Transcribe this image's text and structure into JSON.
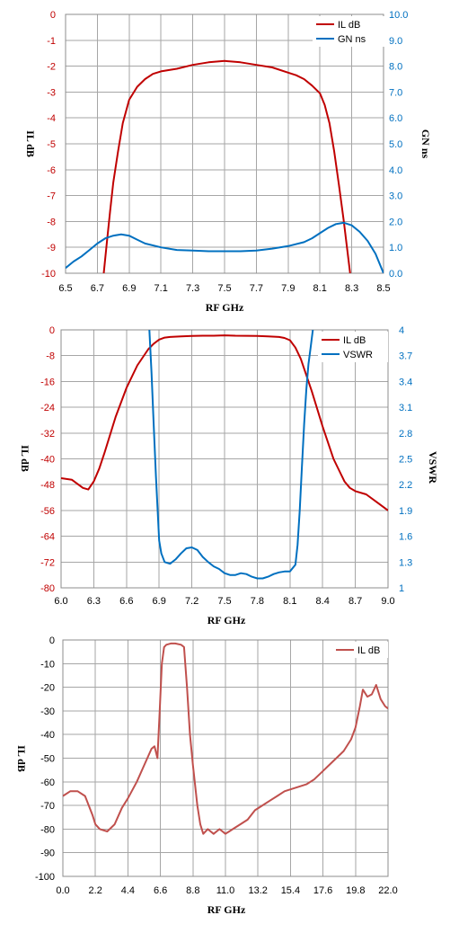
{
  "chart_data": [
    {
      "id": "c1",
      "type": "line",
      "xlabel": "RF GHz",
      "ylabel": "IL dB",
      "y2label": "GN ns",
      "xlim": [
        6.5,
        8.5
      ],
      "ylim": [
        -10,
        0
      ],
      "y2lim": [
        0,
        10
      ],
      "xticks": [
        "6.5",
        "6.7",
        "6.9",
        "7.1",
        "7.3",
        "7.5",
        "7.7",
        "7.9",
        "8.1",
        "8.3",
        "8.5"
      ],
      "yticks": [
        "0",
        "-1",
        "-2",
        "-3",
        "-4",
        "-5",
        "-6",
        "-7",
        "-8",
        "-9",
        "-10"
      ],
      "y2ticks": [
        "10.0",
        "9.0",
        "8.0",
        "7.0",
        "6.0",
        "5.0",
        "4.0",
        "3.0",
        "2.0",
        "1.0",
        "0.0"
      ],
      "legend": {
        "position": "top-right"
      },
      "colors": {
        "left_axis": "#c00000",
        "right_axis": "#0070c0"
      },
      "series": [
        {
          "name": "IL dB",
          "axis": "left",
          "color": "#c00000",
          "x": [
            6.74,
            6.76,
            6.78,
            6.8,
            6.83,
            6.86,
            6.9,
            6.95,
            7.0,
            7.05,
            7.1,
            7.2,
            7.3,
            7.4,
            7.5,
            7.6,
            7.7,
            7.8,
            7.9,
            7.95,
            8.0,
            8.05,
            8.1,
            8.13,
            8.16,
            8.19,
            8.22,
            8.25,
            8.27,
            8.29
          ],
          "y": [
            -10,
            -8.8,
            -7.6,
            -6.5,
            -5.3,
            -4.2,
            -3.3,
            -2.8,
            -2.5,
            -2.3,
            -2.2,
            -2.1,
            -1.95,
            -1.85,
            -1.8,
            -1.85,
            -1.95,
            -2.05,
            -2.25,
            -2.35,
            -2.5,
            -2.75,
            -3.05,
            -3.5,
            -4.2,
            -5.3,
            -6.6,
            -8.0,
            -9.0,
            -10
          ]
        },
        {
          "name": "GN ns",
          "axis": "right",
          "color": "#0070c0",
          "x": [
            6.5,
            6.55,
            6.6,
            6.65,
            6.7,
            6.75,
            6.8,
            6.85,
            6.9,
            6.95,
            7.0,
            7.1,
            7.2,
            7.3,
            7.4,
            7.5,
            7.6,
            7.7,
            7.8,
            7.9,
            8.0,
            8.05,
            8.1,
            8.15,
            8.2,
            8.25,
            8.3,
            8.35,
            8.4,
            8.45,
            8.5
          ],
          "y": [
            0.2,
            0.45,
            0.65,
            0.9,
            1.15,
            1.35,
            1.45,
            1.5,
            1.45,
            1.3,
            1.15,
            1.0,
            0.9,
            0.88,
            0.85,
            0.85,
            0.85,
            0.88,
            0.95,
            1.05,
            1.2,
            1.35,
            1.55,
            1.75,
            1.9,
            1.95,
            1.85,
            1.6,
            1.25,
            0.75,
            0.0
          ]
        }
      ]
    },
    {
      "id": "c2",
      "type": "line",
      "xlabel": "RF GHz",
      "ylabel": "IL dB",
      "y2label": "VSWR",
      "xlim": [
        6.0,
        9.0
      ],
      "ylim": [
        -80,
        0
      ],
      "y2lim": [
        1,
        4
      ],
      "xticks": [
        "6.0",
        "6.3",
        "6.6",
        "6.9",
        "7.2",
        "7.5",
        "7.8",
        "8.1",
        "8.4",
        "8.7",
        "9.0"
      ],
      "yticks": [
        "0",
        "-8",
        "-16",
        "-24",
        "-32",
        "-40",
        "-48",
        "-56",
        "-64",
        "-72",
        "-80"
      ],
      "y2ticks": [
        "4",
        "3.7",
        "3.4",
        "3.1",
        "2.8",
        "2.5",
        "2.2",
        "1.9",
        "1.6",
        "1.3",
        "1"
      ],
      "legend": {
        "position": "top-right"
      },
      "colors": {
        "left_axis": "#c00000",
        "right_axis": "#0070c0"
      },
      "series": [
        {
          "name": "IL dB",
          "axis": "left",
          "color": "#c00000",
          "x": [
            6.0,
            6.1,
            6.2,
            6.25,
            6.3,
            6.35,
            6.4,
            6.5,
            6.6,
            6.7,
            6.8,
            6.85,
            6.9,
            6.95,
            7.0,
            7.1,
            7.2,
            7.3,
            7.4,
            7.5,
            7.6,
            7.7,
            7.8,
            7.9,
            8.0,
            8.05,
            8.1,
            8.15,
            8.2,
            8.3,
            8.4,
            8.5,
            8.6,
            8.65,
            8.7,
            8.8,
            8.9,
            9.0
          ],
          "y": [
            -46,
            -46.5,
            -49,
            -49.5,
            -47,
            -43,
            -38,
            -27,
            -18,
            -11,
            -6,
            -4.3,
            -3,
            -2.4,
            -2.2,
            -2.0,
            -1.9,
            -1.8,
            -1.8,
            -1.7,
            -1.8,
            -1.85,
            -1.9,
            -2.0,
            -2.2,
            -2.5,
            -3.2,
            -5.5,
            -9,
            -19,
            -30,
            -40,
            -47,
            -49,
            -50,
            -51,
            -53.5,
            -56
          ]
        },
        {
          "name": "VSWR",
          "axis": "right",
          "color": "#0070c0",
          "x": [
            6.81,
            6.83,
            6.85,
            6.87,
            6.89,
            6.9,
            6.92,
            6.95,
            7.0,
            7.05,
            7.1,
            7.15,
            7.2,
            7.25,
            7.3,
            7.35,
            7.4,
            7.45,
            7.5,
            7.55,
            7.6,
            7.65,
            7.7,
            7.75,
            7.8,
            7.85,
            7.9,
            7.95,
            8.0,
            8.05,
            8.1,
            8.15,
            8.17,
            8.19,
            8.21,
            8.23,
            8.25,
            8.27,
            8.29,
            8.31
          ],
          "y": [
            4.0,
            3.5,
            2.9,
            2.3,
            1.8,
            1.55,
            1.4,
            1.3,
            1.28,
            1.33,
            1.4,
            1.46,
            1.47,
            1.44,
            1.36,
            1.3,
            1.25,
            1.22,
            1.17,
            1.15,
            1.15,
            1.17,
            1.16,
            1.13,
            1.11,
            1.11,
            1.13,
            1.16,
            1.18,
            1.19,
            1.19,
            1.27,
            1.5,
            1.9,
            2.4,
            2.9,
            3.3,
            3.6,
            3.8,
            4.0
          ]
        }
      ]
    },
    {
      "id": "c3",
      "type": "line",
      "xlabel": "RF GHz",
      "ylabel": "IL dB",
      "xlim": [
        0,
        22
      ],
      "ylim": [
        -100,
        0
      ],
      "xticks": [
        "0.0",
        "2.2",
        "4.4",
        "6.6",
        "8.8",
        "11.0",
        "13.2",
        "15.4",
        "17.6",
        "19.8",
        "22.0"
      ],
      "yticks": [
        "0",
        "-10",
        "-20",
        "-30",
        "-40",
        "-50",
        "-60",
        "-70",
        "-80",
        "-90",
        "-100"
      ],
      "legend": {
        "position": "top-right"
      },
      "colors": {
        "left_axis": "#000000"
      },
      "series": [
        {
          "name": "IL dB",
          "axis": "left",
          "color": "#c0504d",
          "x": [
            0,
            0.5,
            1,
            1.5,
            2,
            2.2,
            2.5,
            3,
            3.5,
            4,
            4.4,
            5,
            5.5,
            6,
            6.2,
            6.4,
            6.55,
            6.7,
            6.85,
            7.0,
            7.3,
            7.6,
            8.0,
            8.2,
            8.4,
            8.6,
            8.8,
            9.1,
            9.3,
            9.5,
            9.8,
            10.2,
            10.6,
            11,
            11.5,
            12,
            12.5,
            13,
            13.5,
            14,
            14.5,
            15,
            15.5,
            16,
            16.5,
            17,
            17.5,
            18,
            18.5,
            19,
            19.5,
            19.8,
            20.1,
            20.3,
            20.6,
            20.9,
            21.2,
            21.5,
            21.8,
            22.0
          ],
          "y": [
            -66,
            -64,
            -64,
            -66,
            -74,
            -78,
            -80,
            -81,
            -78,
            -71,
            -67,
            -60,
            -53,
            -46,
            -45,
            -50,
            -30,
            -10,
            -3,
            -2,
            -1.5,
            -1.5,
            -2,
            -3,
            -20,
            -40,
            -53,
            -70,
            -78,
            -82,
            -80,
            -82,
            -80,
            -82,
            -80,
            -78,
            -76,
            -72,
            -70,
            -68,
            -66,
            -64,
            -63,
            -62,
            -61,
            -59,
            -56,
            -53,
            -50,
            -47,
            -42,
            -37,
            -28,
            -21,
            -24,
            -23,
            -19,
            -25,
            -28,
            -29
          ]
        }
      ]
    }
  ]
}
